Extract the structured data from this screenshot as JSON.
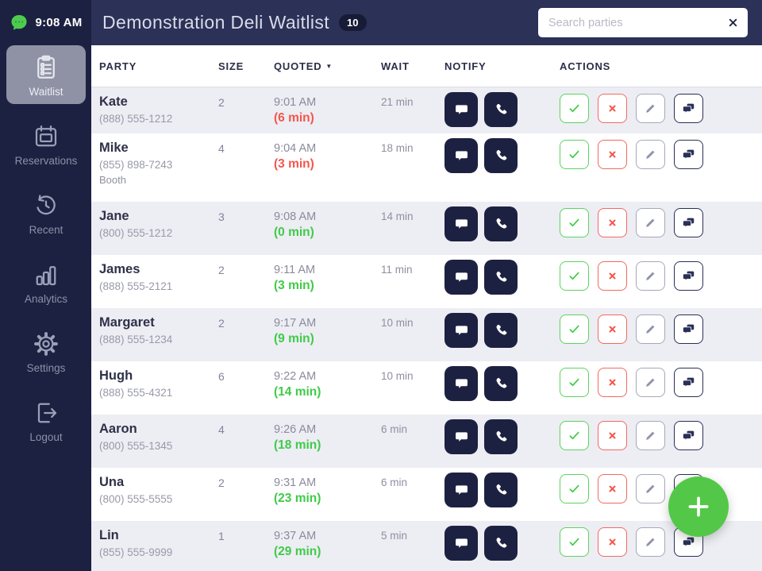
{
  "colors": {
    "navy-dark": "#1d2141",
    "navy-header": "#2c3158",
    "nav-active": "#8e92a4",
    "green": "#3fcb47",
    "green-fab": "#53c848",
    "red": "#f4564c",
    "row-alt": "#ededf4"
  },
  "sidebar": {
    "time": "9:08 AM",
    "logo_icon": "chat-bubble-logo",
    "items": [
      {
        "id": "waitlist",
        "label": "Waitlist",
        "icon": "clipboard-icon",
        "active": true
      },
      {
        "id": "reservations",
        "label": "Reservations",
        "icon": "calendar-icon",
        "active": false
      },
      {
        "id": "recent",
        "label": "Recent",
        "icon": "history-icon",
        "active": false
      },
      {
        "id": "analytics",
        "label": "Analytics",
        "icon": "bar-chart-icon",
        "active": false
      },
      {
        "id": "settings",
        "label": "Settings",
        "icon": "gear-icon",
        "active": false
      },
      {
        "id": "logout",
        "label": "Logout",
        "icon": "logout-icon",
        "active": false
      }
    ]
  },
  "header": {
    "title": "Demonstration Deli Waitlist",
    "count": "10",
    "search_placeholder": "Search parties",
    "search_clear_icon": "x-icon"
  },
  "table": {
    "headers": {
      "party": "PARTY",
      "size": "SIZE",
      "quoted": "QUOTED",
      "wait": "WAIT",
      "notify": "NOTIFY",
      "actions": "ACTIONS"
    },
    "sort": {
      "column": "QUOTED",
      "direction": "desc",
      "icon": "caret-down-icon"
    },
    "notify_icons": [
      "message-bubble-icon",
      "phone-icon"
    ],
    "action_icons": [
      "check-icon",
      "x-icon",
      "pencil-icon",
      "chat-bubbles-icon"
    ],
    "rows": [
      {
        "name": "Kate",
        "phone": "(888) 555-1212",
        "note": "",
        "size": "2",
        "quoted": "9:01 AM",
        "delta": "(6 min)",
        "delta_state": "overdue",
        "wait": "21 min"
      },
      {
        "name": "Mike",
        "phone": "(855) 898-7243",
        "note": "Booth",
        "size": "4",
        "quoted": "9:04 AM",
        "delta": "(3 min)",
        "delta_state": "overdue",
        "wait": "18 min"
      },
      {
        "name": "Jane",
        "phone": "(800) 555-1212",
        "note": "",
        "size": "3",
        "quoted": "9:08 AM",
        "delta": "(0 min)",
        "delta_state": "upcoming",
        "wait": "14 min"
      },
      {
        "name": "James",
        "phone": "(888) 555-2121",
        "note": "",
        "size": "2",
        "quoted": "9:11 AM",
        "delta": "(3 min)",
        "delta_state": "upcoming",
        "wait": "11 min"
      },
      {
        "name": "Margaret",
        "phone": "(888) 555-1234",
        "note": "",
        "size": "2",
        "quoted": "9:17 AM",
        "delta": "(9 min)",
        "delta_state": "upcoming",
        "wait": "10 min"
      },
      {
        "name": "Hugh",
        "phone": "(888) 555-4321",
        "note": "",
        "size": "6",
        "quoted": "9:22 AM",
        "delta": "(14 min)",
        "delta_state": "upcoming",
        "wait": "10 min"
      },
      {
        "name": "Aaron",
        "phone": "(800) 555-1345",
        "note": "",
        "size": "4",
        "quoted": "9:26 AM",
        "delta": "(18 min)",
        "delta_state": "upcoming",
        "wait": "6 min"
      },
      {
        "name": "Una",
        "phone": "(800) 555-5555",
        "note": "",
        "size": "2",
        "quoted": "9:31 AM",
        "delta": "(23 min)",
        "delta_state": "upcoming",
        "wait": "6 min"
      },
      {
        "name": "Lin",
        "phone": "(855) 555-9999",
        "note": "",
        "size": "1",
        "quoted": "9:37 AM",
        "delta": "(29 min)",
        "delta_state": "upcoming",
        "wait": "5 min"
      }
    ]
  },
  "fab": {
    "label": "+",
    "icon": "plus-icon"
  }
}
